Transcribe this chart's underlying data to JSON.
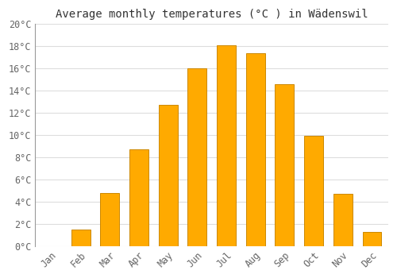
{
  "title": "Average monthly temperatures (°C ) in Wädenswil",
  "months": [
    "Jan",
    "Feb",
    "Mar",
    "Apr",
    "May",
    "Jun",
    "Jul",
    "Aug",
    "Sep",
    "Oct",
    "Nov",
    "Dec"
  ],
  "values": [
    0.0,
    1.5,
    4.8,
    8.7,
    12.7,
    16.0,
    18.1,
    17.4,
    14.6,
    9.9,
    4.7,
    1.3
  ],
  "bar_color": "#FFAA00",
  "bar_edge_color": "#CC8800",
  "background_color": "#FFFFFF",
  "grid_color": "#DDDDDD",
  "ylim": [
    0,
    20
  ],
  "yticks": [
    0,
    2,
    4,
    6,
    8,
    10,
    12,
    14,
    16,
    18,
    20
  ],
  "ytick_labels": [
    "0°C",
    "2°C",
    "4°C",
    "6°C",
    "8°C",
    "10°C",
    "12°C",
    "14°C",
    "16°C",
    "18°C",
    "20°C"
  ],
  "title_fontsize": 10,
  "tick_fontsize": 8.5,
  "font_family": "monospace"
}
